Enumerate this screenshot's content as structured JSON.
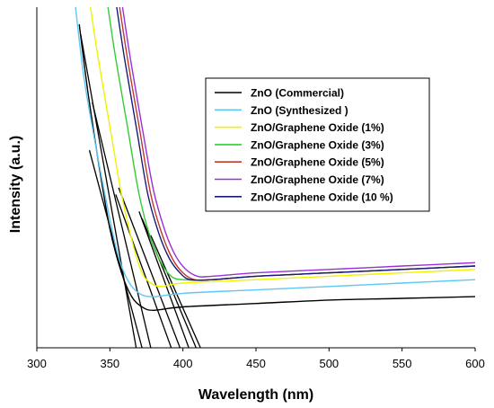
{
  "chart_data": {
    "type": "line",
    "xlabel": "Wavelength (nm)",
    "ylabel": "Intensity (a.u.)",
    "xlim": [
      300,
      600
    ],
    "ylim": [
      0,
      1
    ],
    "x_ticks": [
      300,
      350,
      400,
      450,
      500,
      550,
      600
    ],
    "grid": false,
    "legend_position": "top-right",
    "series": [
      {
        "name": "ZnO (Commercial)",
        "color": "#000000",
        "x": [
          329,
          335,
          342,
          350,
          358,
          365,
          372,
          380,
          400,
          450,
          500,
          550,
          600
        ],
        "y": [
          0.95,
          0.75,
          0.55,
          0.35,
          0.22,
          0.15,
          0.12,
          0.11,
          0.12,
          0.13,
          0.14,
          0.145,
          0.15
        ]
      },
      {
        "name": "ZnO (Synthesized )",
        "color": "#5bc8f5",
        "x": [
          326,
          332,
          340,
          348,
          355,
          362,
          370,
          380,
          400,
          450,
          500,
          550,
          600
        ],
        "y": [
          1.02,
          0.8,
          0.6,
          0.42,
          0.28,
          0.2,
          0.16,
          0.15,
          0.16,
          0.17,
          0.18,
          0.19,
          0.2
        ]
      },
      {
        "name": "ZnO/Graphene Oxide (1%)",
        "color": "#f2f200",
        "x": [
          336,
          342,
          350,
          358,
          366,
          372,
          378,
          385,
          400,
          450,
          500,
          550,
          600
        ],
        "y": [
          1.02,
          0.85,
          0.65,
          0.45,
          0.3,
          0.22,
          0.19,
          0.18,
          0.19,
          0.2,
          0.21,
          0.22,
          0.23
        ]
      },
      {
        "name": "ZnO/Graphene Oxide (3%)",
        "color": "#33cc33",
        "x": [
          348,
          354,
          362,
          370,
          378,
          385,
          392,
          400,
          420,
          450,
          500,
          550,
          600
        ],
        "y": [
          1.02,
          0.85,
          0.65,
          0.45,
          0.32,
          0.25,
          0.21,
          0.2,
          0.2,
          0.21,
          0.22,
          0.23,
          0.24
        ]
      },
      {
        "name": "ZnO/Graphene Oxide (5%)",
        "color": "#c0392b",
        "x": [
          356,
          362,
          370,
          378,
          386,
          393,
          400,
          408,
          420,
          450,
          500,
          550,
          600
        ],
        "y": [
          1.02,
          0.85,
          0.65,
          0.45,
          0.33,
          0.26,
          0.22,
          0.2,
          0.2,
          0.21,
          0.22,
          0.23,
          0.24
        ]
      },
      {
        "name": "ZnO/Graphene Oxide (7%)",
        "color": "#9b30d9",
        "x": [
          358,
          364,
          372,
          380,
          388,
          395,
          402,
          410,
          420,
          450,
          500,
          550,
          600
        ],
        "y": [
          1.02,
          0.85,
          0.65,
          0.46,
          0.34,
          0.27,
          0.23,
          0.21,
          0.21,
          0.22,
          0.23,
          0.24,
          0.25
        ]
      },
      {
        "name": "ZnO/Graphene Oxide (10 %)",
        "color": "#1a1a7a",
        "x": [
          354,
          360,
          368,
          376,
          384,
          391,
          398,
          405,
          420,
          450,
          500,
          550,
          600
        ],
        "y": [
          1.02,
          0.85,
          0.65,
          0.45,
          0.33,
          0.26,
          0.22,
          0.2,
          0.2,
          0.21,
          0.22,
          0.23,
          0.24
        ]
      }
    ],
    "annotations": {
      "tangent_lines": [
        {
          "x1": 330,
          "y1": 0.92,
          "x2": 368,
          "y2": 0.0
        },
        {
          "x1": 338,
          "y1": 0.72,
          "x2": 378,
          "y2": 0.0
        },
        {
          "x1": 336,
          "y1": 0.58,
          "x2": 372,
          "y2": 0.0
        },
        {
          "x1": 354,
          "y1": 0.45,
          "x2": 392,
          "y2": 0.0
        },
        {
          "x1": 356,
          "y1": 0.47,
          "x2": 398,
          "y2": 0.0
        },
        {
          "x1": 370,
          "y1": 0.4,
          "x2": 404,
          "y2": 0.0
        },
        {
          "x1": 372,
          "y1": 0.38,
          "x2": 409,
          "y2": 0.0
        },
        {
          "x1": 378,
          "y1": 0.33,
          "x2": 412,
          "y2": 0.0
        }
      ]
    }
  }
}
